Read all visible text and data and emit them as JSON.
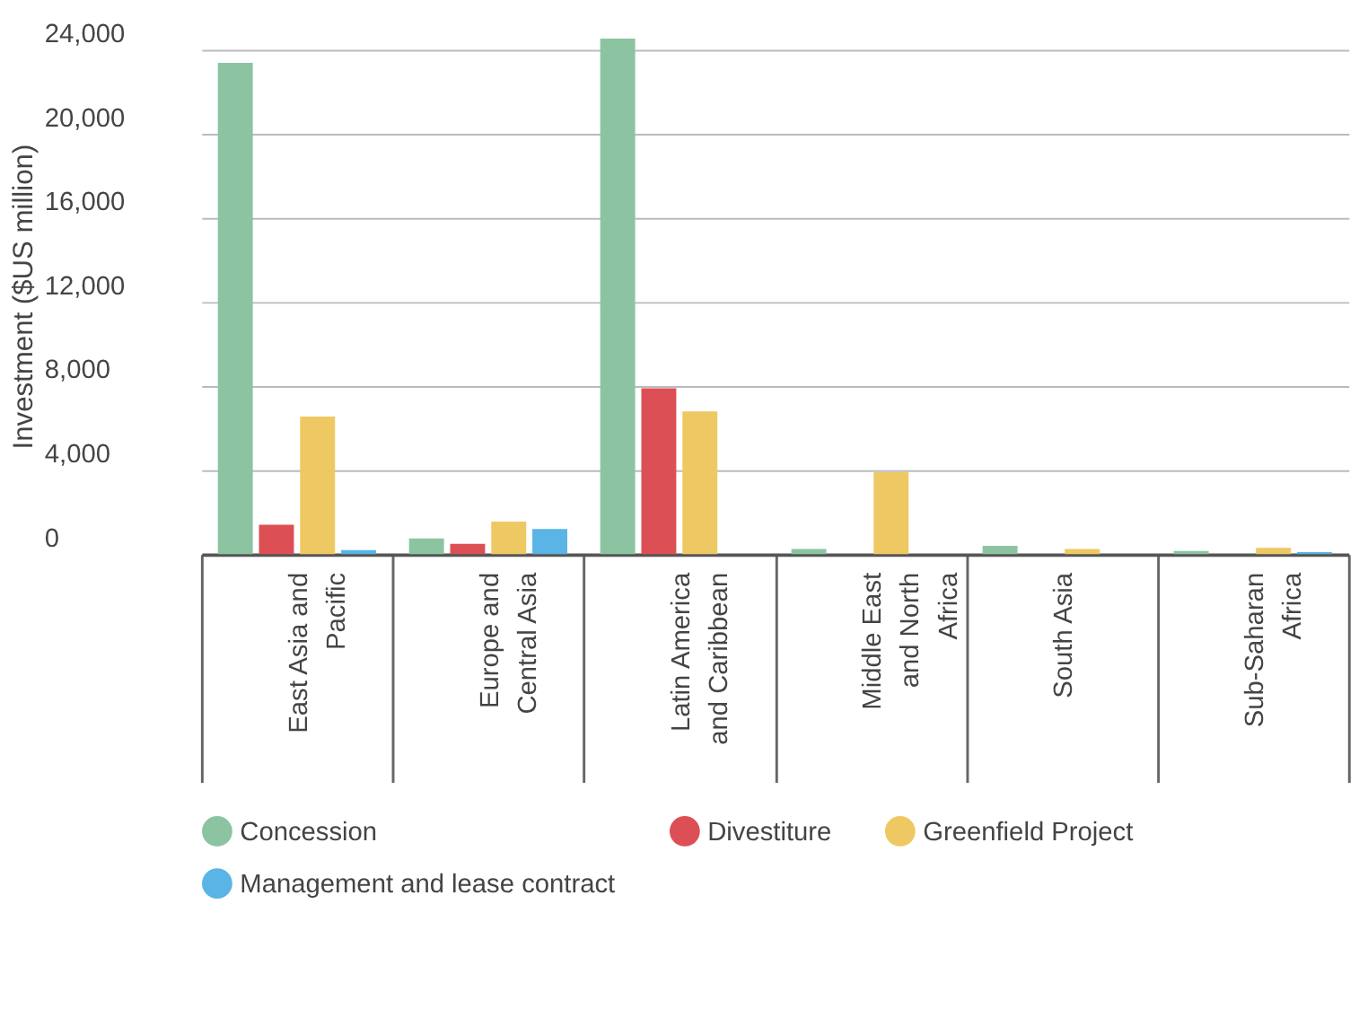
{
  "chart_data": {
    "type": "bar",
    "ylabel": "Investment ($US million)",
    "categories": [
      "East Asia and Pacific",
      "Europe and Central Asia",
      "Latin America and Caribbean",
      "Middle East and North Africa",
      "South Asia",
      "Sub-Saharan Africa"
    ],
    "series": [
      {
        "name": "Concession",
        "color": "#8cc4a2",
        "values": [
          23400,
          750,
          24550,
          250,
          400,
          150
        ]
      },
      {
        "name": "Divestiture",
        "color": "#dc5055",
        "values": [
          1400,
          500,
          7900,
          0,
          0,
          0
        ]
      },
      {
        "name": "Greenfield Project",
        "color": "#eec862",
        "values": [
          6550,
          1550,
          6800,
          3900,
          250,
          300
        ]
      },
      {
        "name": "Management and lease contract",
        "color": "#5ab4e6",
        "values": [
          200,
          1200,
          0,
          0,
          0,
          100
        ]
      }
    ],
    "ylim": [
      0,
      24600
    ],
    "yticks": [
      {
        "value": 0,
        "label": "0"
      },
      {
        "value": 4000,
        "label": "4,000"
      },
      {
        "value": 8000,
        "label": "8,000"
      },
      {
        "value": 12000,
        "label": "12,000"
      },
      {
        "value": 16000,
        "label": "16,000"
      },
      {
        "value": 20000,
        "label": "20,000"
      },
      {
        "value": 24000,
        "label": "24,000"
      }
    ],
    "grid": "y",
    "legend": "bottom"
  }
}
